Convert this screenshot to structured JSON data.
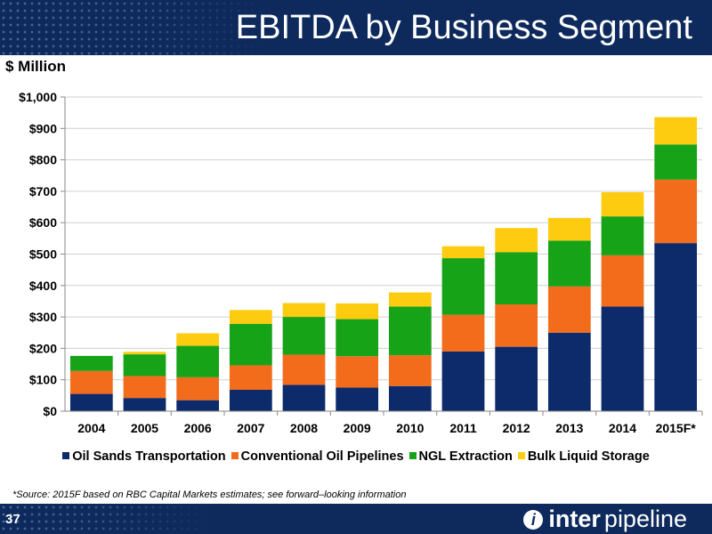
{
  "header": {
    "title": "EBITDA by Business Segment"
  },
  "unit_label": "$ Million",
  "footnote": "*Source: 2015F based on RBC Capital Markets estimates; see forward–looking information",
  "footer": {
    "page_number": "37",
    "brand_part1": "inter",
    "brand_part2": "pipeline",
    "logo_icon": "pipeline-logo-icon"
  },
  "chart_data": {
    "type": "bar",
    "stacked": true,
    "categories": [
      "2004",
      "2005",
      "2006",
      "2007",
      "2008",
      "2009",
      "2010",
      "2011",
      "2012",
      "2013",
      "2014",
      "2015F*"
    ],
    "series": [
      {
        "name": "Oil Sands Transportation",
        "color": "#0d2a6b",
        "values": [
          55,
          42,
          35,
          68,
          84,
          75,
          80,
          190,
          205,
          250,
          333,
          535
        ]
      },
      {
        "name": "Conventional Oil Pipelines",
        "color": "#f26c1c",
        "values": [
          73,
          70,
          73,
          78,
          96,
          100,
          98,
          117,
          135,
          147,
          163,
          202
        ]
      },
      {
        "name": "NGL Extraction",
        "color": "#16a318",
        "values": [
          48,
          69,
          100,
          132,
          120,
          118,
          155,
          180,
          166,
          146,
          124,
          112
        ]
      },
      {
        "name": "Bulk Liquid Storage",
        "color": "#fdcb0f",
        "values": [
          0,
          8,
          40,
          44,
          44,
          50,
          45,
          38,
          77,
          72,
          77,
          87
        ]
      }
    ],
    "yticks": [
      "$0",
      "$100",
      "$200",
      "$300",
      "$400",
      "$500",
      "$600",
      "$700",
      "$800",
      "$900",
      "$1,000"
    ],
    "ylim": [
      0,
      1000
    ],
    "grid": true,
    "legend_position": "bottom"
  }
}
